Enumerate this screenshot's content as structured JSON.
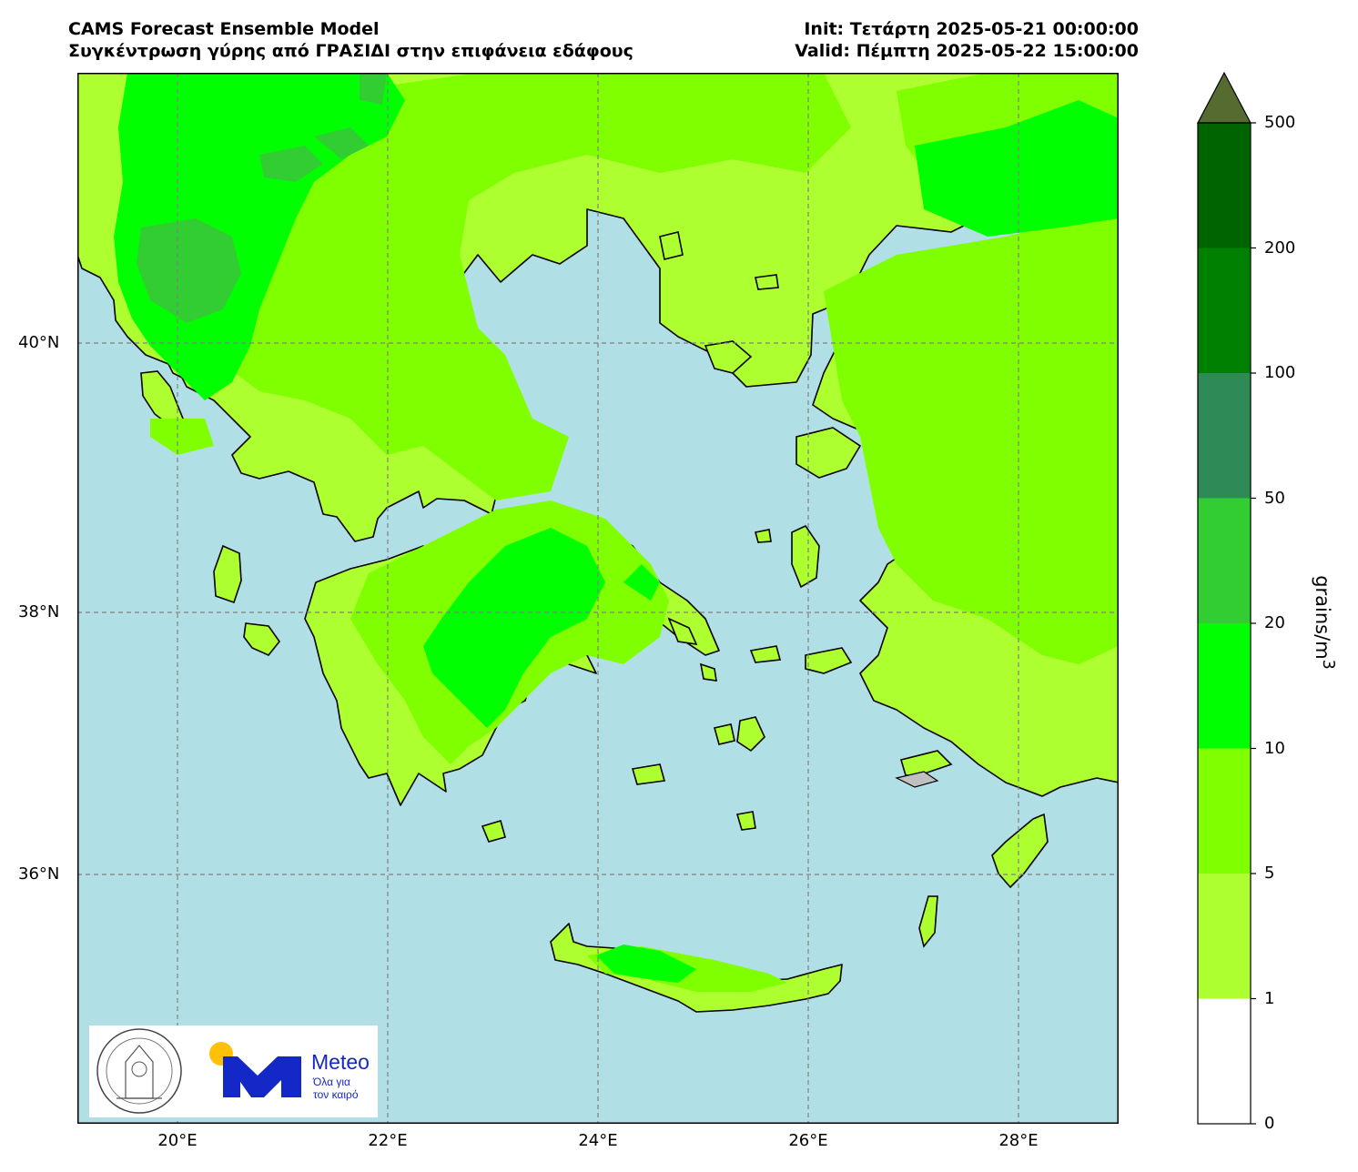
{
  "header": {
    "title_line1": "CAMS Forecast Ensemble Model",
    "title_line2": "Συγκέντρωση γύρης από ΓΡΑΣΙΔΙ στην επιφάνεια εδάφους",
    "init": "Init: Τετάρτη 2025-05-21 00:00:00",
    "valid": "Valid: Πέμπτη 2025-05-22 15:00:00"
  },
  "map": {
    "lat_labels": [
      "40°N",
      "38°N",
      "36°N"
    ],
    "lon_labels": [
      "20°E",
      "22°E",
      "24°E",
      "26°E",
      "28°E"
    ],
    "colors": {
      "sea": "#b0dfe6",
      "land_1_5": "#adff2f",
      "land_5_10": "#7fff00",
      "land_10_20": "#00ff00",
      "land_20_50": "#32cd32",
      "coast": "#000000",
      "grid": "#808080"
    }
  },
  "logos": {
    "observatory": "ΕΘΝΙΚΟΝ ΑΣΤΕΡΟΣΚΟΠΕΙΟΝ ΑΘΗΝΩΝ · NATIONAL OBSERVATORY OF ATHENS",
    "brand": "Meteo",
    "tagline1": "Όλα για",
    "tagline2": "τον καιρό",
    "brand_color": "#1428c8",
    "sun_color": "#ffc107"
  },
  "colorbar": {
    "label": "grains/m",
    "label_sup": "3",
    "ticks": [
      "0",
      "1",
      "5",
      "10",
      "20",
      "50",
      "100",
      "200",
      "500"
    ],
    "colors": [
      "#ffffff",
      "#adff2f",
      "#7fff00",
      "#00ff00",
      "#32cd32",
      "#2e8b57",
      "#008000",
      "#006400",
      "#556b2f"
    ]
  }
}
